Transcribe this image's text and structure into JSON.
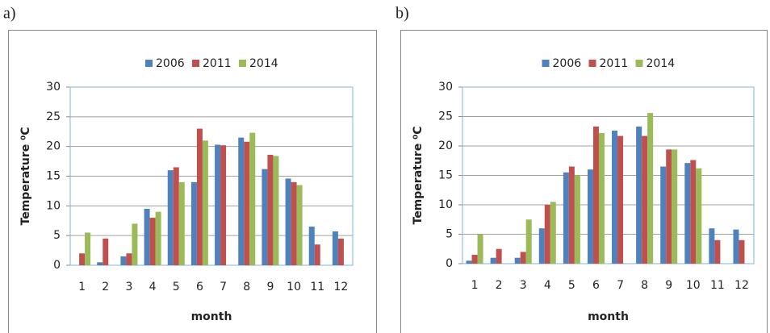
{
  "chart_data": [
    {
      "type": "bar",
      "label": "a)",
      "ylabel": "Temperature ⁰C",
      "xlabel": "month",
      "categories": [
        "1",
        "2",
        "3",
        "4",
        "5",
        "6",
        "7",
        "8",
        "9",
        "10",
        "11",
        "12"
      ],
      "series": [
        {
          "name": "2006",
          "color": "#4f81bd",
          "values": [
            null,
            0.5,
            1.5,
            9.5,
            16,
            14,
            20.3,
            21.5,
            16.2,
            14.6,
            6.5,
            5.7
          ]
        },
        {
          "name": "2011",
          "color": "#c0504d",
          "values": [
            2,
            4.5,
            2,
            8,
            16.5,
            23,
            20.2,
            20.8,
            18.6,
            14,
            3.5,
            4.5
          ]
        },
        {
          "name": "2014",
          "color": "#9bbb59",
          "values": [
            5.5,
            null,
            7,
            9,
            14,
            21,
            null,
            22.3,
            18.4,
            13.5,
            null,
            null
          ]
        }
      ],
      "ylim": [
        0,
        30
      ],
      "yticks": [
        0,
        5,
        10,
        15,
        20,
        25,
        30
      ],
      "grid": true,
      "legend": "top"
    },
    {
      "type": "bar",
      "label": "b)",
      "ylabel": "Temperature ⁰C",
      "xlabel": "month",
      "categories": [
        "1",
        "2",
        "3",
        "4",
        "5",
        "6",
        "7",
        "8",
        "9",
        "10",
        "11",
        "12"
      ],
      "series": [
        {
          "name": "2006",
          "color": "#4f81bd",
          "values": [
            0.5,
            1,
            1,
            6,
            15.5,
            16,
            22.6,
            23.3,
            16.5,
            17.1,
            6,
            5.8
          ]
        },
        {
          "name": "2011",
          "color": "#c0504d",
          "values": [
            1.5,
            2.5,
            2,
            10,
            16.5,
            23.3,
            21.7,
            21.7,
            19.4,
            17.6,
            4,
            4
          ]
        },
        {
          "name": "2014",
          "color": "#9bbb59",
          "values": [
            5,
            null,
            7.5,
            10.5,
            15,
            22.2,
            null,
            25.6,
            19.4,
            16.2,
            null,
            null
          ]
        }
      ],
      "ylim": [
        0,
        30
      ],
      "yticks": [
        0,
        5,
        10,
        15,
        20,
        25,
        30
      ],
      "grid": true,
      "legend": "top"
    }
  ]
}
